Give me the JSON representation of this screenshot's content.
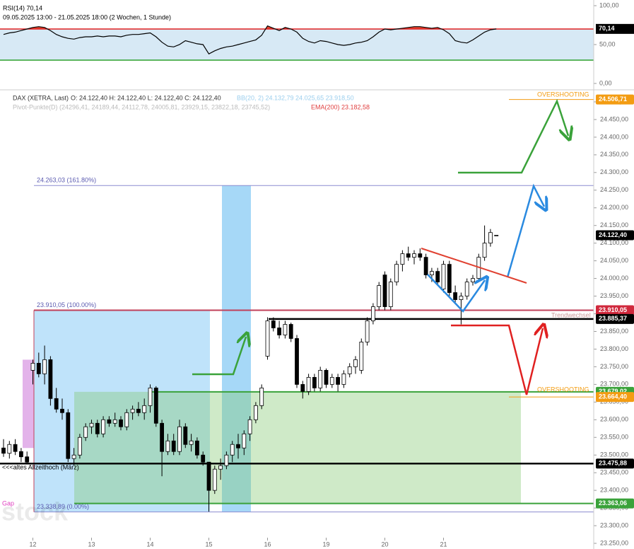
{
  "chart_data": [
    {
      "type": "line",
      "title": "RSI(14) 70,14",
      "subtitle": "09.05.2025 13:00 - 21.05.2025 18:00 (2 Wochen, 1 Stunde)",
      "values": [
        63,
        65,
        66,
        68,
        70,
        72,
        73,
        72,
        68,
        63,
        60,
        58,
        57,
        59,
        60,
        60,
        61,
        60,
        61,
        61,
        60,
        62,
        63,
        63,
        64,
        65,
        60,
        53,
        48,
        47,
        50,
        55,
        53,
        51,
        50,
        38,
        42,
        45,
        47,
        48,
        50,
        52,
        54,
        56,
        62,
        74,
        71,
        68,
        72,
        70,
        66,
        58,
        54,
        52,
        55,
        54,
        52,
        50,
        49,
        50,
        52,
        53,
        55,
        60,
        66,
        70,
        69,
        70,
        71,
        72,
        73,
        73,
        72,
        71,
        72,
        69,
        64,
        55,
        53,
        52,
        56,
        61,
        66,
        69,
        70.14
      ],
      "last_value_label": "70,14",
      "color": "#000000",
      "upper_level": 70,
      "lower_level": 30,
      "ylim": [
        -6.4,
        107.3
      ],
      "yticks": [
        {
          "value": 100,
          "label": "100,00"
        },
        {
          "value": 50,
          "label": "50,00"
        },
        {
          "value": 0,
          "label": "0,00"
        }
      ]
    },
    {
      "type": "candlestick",
      "title": "DAX (XETRA, Last)",
      "ohlc_label": "O: 24.122,40  H: 24.122,40  L: 24.122,40  C: 24.122,40",
      "bb_label": "BB(20, 2)  24.132,79  24.025,65  23.918,50",
      "pivot_label": "Pivot-Punkte(D) (24296,41, 24189,44, 24112,78, 24005,81, 23929,15, 23822,18, 23745,52)",
      "ema_label": "EMA(200)  23.182,58",
      "categories": [
        null,
        null,
        null,
        null,
        null,
        "12",
        null,
        null,
        null,
        null,
        null,
        null,
        null,
        null,
        null,
        "13",
        null,
        null,
        null,
        null,
        null,
        null,
        null,
        null,
        null,
        "14",
        null,
        null,
        null,
        null,
        null,
        null,
        null,
        null,
        null,
        "15",
        null,
        null,
        null,
        null,
        null,
        null,
        null,
        null,
        null,
        "16",
        null,
        null,
        null,
        null,
        null,
        null,
        null,
        null,
        null,
        "19",
        null,
        null,
        null,
        null,
        null,
        null,
        null,
        null,
        null,
        "20",
        null,
        null,
        null,
        null,
        null,
        null,
        null,
        null,
        null,
        "21",
        null,
        null,
        null,
        null,
        null,
        null,
        null,
        null,
        null
      ],
      "open": [
        23520,
        23505,
        23530,
        23510,
        23495,
        23740,
        23760,
        23730,
        23770,
        23660,
        23630,
        23620,
        23490,
        23500,
        23550,
        23580,
        23590,
        23560,
        23600,
        23590,
        23600,
        23580,
        23620,
        23630,
        23620,
        23640,
        23690,
        23590,
        23510,
        23540,
        23510,
        23580,
        23530,
        23540,
        23500,
        23480,
        23400,
        23460,
        23470,
        23500,
        23530,
        23520,
        23560,
        23600,
        23640,
        23780,
        23880,
        23860,
        23840,
        23870,
        23830,
        23700,
        23680,
        23720,
        23690,
        23740,
        23700,
        23720,
        23700,
        23730,
        23750,
        23740,
        23820,
        23880,
        23920,
        24010,
        23920,
        23990,
        24040,
        24070,
        24060,
        24070,
        24060,
        24010,
        24020,
        23970,
        24040,
        23960,
        23940,
        23950,
        23990,
        24000,
        24060,
        24100,
        24122.4
      ],
      "high": [
        23545,
        23540,
        23545,
        23520,
        23510,
        23770,
        23790,
        23810,
        23780,
        23690,
        23660,
        23630,
        23520,
        23560,
        23590,
        23600,
        23600,
        23610,
        23610,
        23620,
        23610,
        23630,
        23640,
        23650,
        23660,
        23700,
        23695,
        23600,
        23560,
        23560,
        23600,
        23590,
        23560,
        23550,
        23510,
        23480,
        23470,
        23490,
        23510,
        23540,
        23560,
        23570,
        23610,
        23650,
        23700,
        23890,
        23890,
        23880,
        23880,
        23875,
        23840,
        23710,
        23730,
        23730,
        23750,
        23745,
        23730,
        23730,
        23740,
        23760,
        23780,
        23830,
        23890,
        23930,
        23990,
        24020,
        24000,
        24050,
        24080,
        24090,
        24080,
        24085,
        24070,
        24030,
        24030,
        24050,
        24050,
        23980,
        23960,
        24000,
        24010,
        24070,
        24150,
        24140,
        24122.4
      ],
      "low": [
        23495,
        23490,
        23500,
        23480,
        23475,
        23700,
        23720,
        23700,
        23640,
        23620,
        23600,
        23480,
        23470,
        23490,
        23540,
        23560,
        23550,
        23550,
        23580,
        23580,
        23570,
        23570,
        23600,
        23610,
        23600,
        23620,
        23580,
        23440,
        23500,
        23500,
        23500,
        23520,
        23510,
        23490,
        23470,
        23340,
        23390,
        23430,
        23460,
        23480,
        23490,
        23500,
        23540,
        23590,
        23630,
        23770,
        23850,
        23830,
        23830,
        23820,
        23690,
        23660,
        23670,
        23680,
        23680,
        23690,
        23690,
        23680,
        23690,
        23720,
        23730,
        23730,
        23810,
        23870,
        23910,
        23910,
        23910,
        23980,
        24020,
        24050,
        24040,
        24050,
        24000,
        23990,
        23980,
        23960,
        23950,
        23930,
        23870,
        23940,
        23980,
        23990,
        24050,
        24090,
        24122.4
      ],
      "close": [
        23505,
        23530,
        23510,
        23495,
        23480,
        23760,
        23730,
        23770,
        23660,
        23630,
        23620,
        23490,
        23500,
        23550,
        23580,
        23590,
        23560,
        23600,
        23590,
        23600,
        23580,
        23620,
        23630,
        23620,
        23640,
        23690,
        23590,
        23510,
        23540,
        23510,
        23580,
        23530,
        23540,
        23500,
        23480,
        23400,
        23460,
        23470,
        23500,
        23530,
        23520,
        23560,
        23600,
        23640,
        23690,
        23880,
        23860,
        23840,
        23870,
        23830,
        23700,
        23680,
        23720,
        23690,
        23740,
        23700,
        23720,
        23700,
        23730,
        23750,
        23770,
        23820,
        23880,
        23920,
        23980,
        23920,
        23990,
        24040,
        24070,
        24060,
        24070,
        24060,
        24010,
        24020,
        23990,
        24040,
        23960,
        23940,
        23950,
        23990,
        24000,
        24060,
        24100,
        24130,
        24122.4
      ],
      "ylim": [
        23234,
        24528
      ],
      "yticks": [
        {
          "value": 24500,
          "label": "24.500,00"
        },
        {
          "value": 24450,
          "label": "24.450,00"
        },
        {
          "value": 24400,
          "label": "24.400,00"
        },
        {
          "value": 24350,
          "label": "24.350,00"
        },
        {
          "value": 24300,
          "label": "24.300,00"
        },
        {
          "value": 24250,
          "label": "24.250,00"
        },
        {
          "value": 24200,
          "label": "24.200,00"
        },
        {
          "value": 24150,
          "label": "24.150,00"
        },
        {
          "value": 24100,
          "label": "24.100,00"
        },
        {
          "value": 24050,
          "label": "24.050,00"
        },
        {
          "value": 24000,
          "label": "24.000,00"
        },
        {
          "value": 23950,
          "label": "23.950,00"
        },
        {
          "value": 23900,
          "label": "23.900,00"
        },
        {
          "value": 23850,
          "label": "23.850,00"
        },
        {
          "value": 23800,
          "label": "23.800,00"
        },
        {
          "value": 23750,
          "label": "23.750,00"
        },
        {
          "value": 23700,
          "label": "23.700,00"
        },
        {
          "value": 23650,
          "label": "23.650,00"
        },
        {
          "value": 23600,
          "label": "23.600,00"
        },
        {
          "value": 23550,
          "label": "23.550,00"
        },
        {
          "value": 23500,
          "label": "23.500,00"
        },
        {
          "value": 23450,
          "label": "23.450,00"
        },
        {
          "value": 23400,
          "label": "23.400,00"
        },
        {
          "value": 23350,
          "label": "23.350,00"
        },
        {
          "value": 23300,
          "label": "23.300,00"
        },
        {
          "value": 23250,
          "label": "23.250,00"
        }
      ],
      "fib_levels": [
        {
          "value": 24263.03,
          "label": "24.263,03 (161.80%)"
        },
        {
          "value": 23910.05,
          "label": "23.910,05 (100.00%)"
        },
        {
          "value": 23338.89,
          "label": "23.338,89 (0.00%)"
        }
      ],
      "levels": [
        {
          "value": 24506.71,
          "label": "24.506,71",
          "color": "#f39c12"
        },
        {
          "value": 24122.4,
          "label": "24.122,40",
          "color": "#000000"
        },
        {
          "value": 23910.05,
          "label": "23.910,05",
          "color": "#d0283c"
        },
        {
          "value": 23885.37,
          "label": "23.885,37",
          "color": "#000000"
        },
        {
          "value": 23679.02,
          "label": "23.679,02",
          "color": "#3aa23a"
        },
        {
          "value": 23664.4,
          "label": "23.664,40",
          "color": "#f39c12"
        },
        {
          "value": 23475.88,
          "label": "23.475,88",
          "color": "#000000"
        },
        {
          "value": 23363.06,
          "label": "23.363,06",
          "color": "#3aa23a"
        }
      ],
      "annotations": {
        "overshooting_top": "OVERSHOOTING",
        "overshooting_bottom": "OVERSHOOTING",
        "trend": "Trendwechsel",
        "ath": "<<<altes Allzeithoch (März)",
        "gap": "Gap",
        "watermark": "stock"
      }
    }
  ]
}
